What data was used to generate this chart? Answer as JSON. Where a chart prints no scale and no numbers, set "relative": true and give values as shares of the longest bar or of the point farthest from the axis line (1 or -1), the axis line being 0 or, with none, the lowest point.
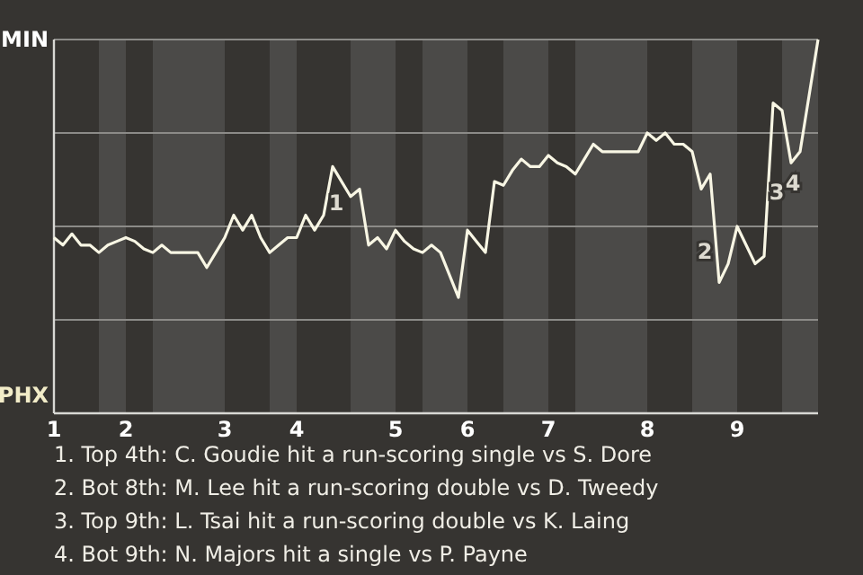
{
  "chart_data": {
    "type": "line",
    "relative": true,
    "categories": [
      "1",
      null,
      null,
      null,
      null,
      null,
      null,
      null,
      "2",
      null,
      null,
      null,
      null,
      null,
      null,
      null,
      null,
      null,
      null,
      "3",
      null,
      null,
      null,
      null,
      null,
      null,
      null,
      "4",
      null,
      null,
      null,
      null,
      null,
      null,
      null,
      null,
      null,
      null,
      "5",
      null,
      null,
      null,
      null,
      null,
      null,
      null,
      "6",
      null,
      null,
      null,
      null,
      null,
      null,
      null,
      null,
      "7",
      null,
      null,
      null,
      null,
      null,
      null,
      null,
      null,
      null,
      null,
      "8",
      null,
      null,
      null,
      null,
      null,
      null,
      null,
      null,
      null,
      "9",
      null,
      null,
      null,
      null,
      null,
      null,
      null,
      null,
      null
    ],
    "series": [
      {
        "color": "#f8f6e4",
        "values": [
          0.47,
          0.45,
          0.48,
          0.45,
          0.45,
          0.43,
          0.45,
          0.46,
          0.47,
          0.46,
          0.44,
          0.43,
          0.45,
          0.43,
          0.43,
          0.43,
          0.43,
          0.39,
          0.43,
          0.47,
          0.53,
          0.49,
          0.53,
          0.47,
          0.43,
          0.45,
          0.47,
          0.47,
          0.53,
          0.49,
          0.53,
          0.66,
          0.62,
          0.58,
          0.6,
          0.45,
          0.47,
          0.44,
          0.49,
          0.46,
          0.44,
          0.43,
          0.45,
          0.43,
          0.37,
          0.31,
          0.49,
          0.46,
          0.43,
          0.62,
          0.61,
          0.65,
          0.68,
          0.66,
          0.66,
          0.69,
          0.67,
          0.66,
          0.64,
          0.68,
          0.72,
          0.7,
          0.7,
          0.7,
          0.7,
          0.7,
          0.75,
          0.73,
          0.75,
          0.72,
          0.72,
          0.7,
          0.6,
          0.64,
          0.35,
          0.4,
          0.5,
          0.45,
          0.4,
          0.42,
          0.83,
          0.81,
          0.67,
          0.7,
          0.85,
          1.0
        ]
      }
    ],
    "grid": "y",
    "annotations": [
      "MIN",
      "PHX",
      "1",
      "2",
      "3",
      "4",
      "1. Top 4th: C. Goudie hit a run-scoring single vs S. Dore",
      "2. Bot 8th: M. Lee hit a run-scoring double vs D. Tweedy",
      "3. Top 9th: L. Tsai hit a run-scoring double vs K. Laing",
      "4. Bot 9th: N. Majors hit a single vs P. Payne"
    ]
  }
}
